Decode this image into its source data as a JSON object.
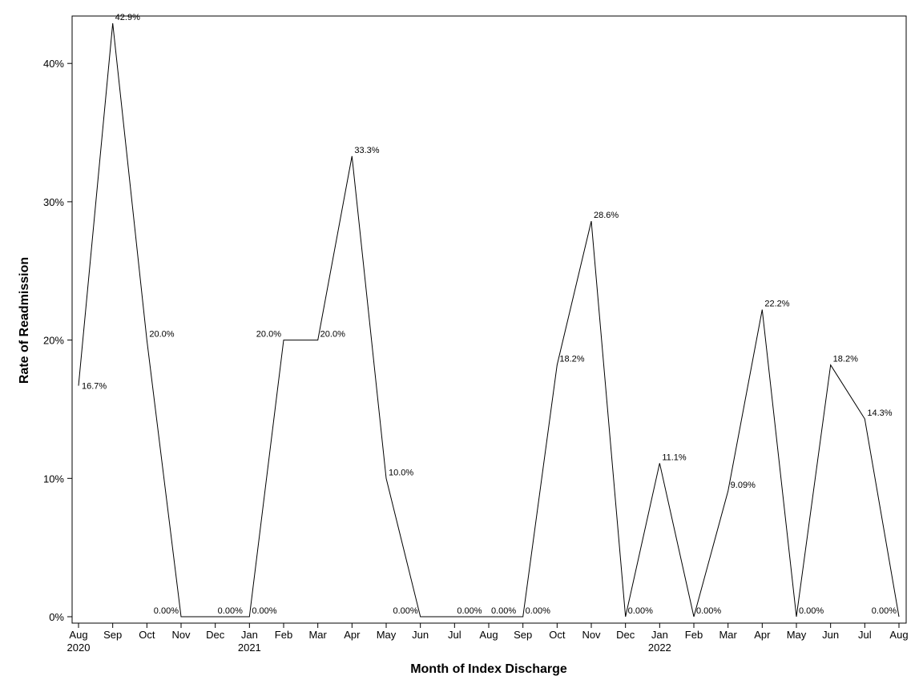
{
  "chart_data": {
    "type": "line",
    "xlabel": "Month of Index Discharge",
    "ylabel": "Rate of Readmission",
    "ylim": [
      0,
      43
    ],
    "yticks": [
      0,
      10,
      20,
      30,
      40
    ],
    "ytick_labels": [
      "0%",
      "10%",
      "20%",
      "30%",
      "40%"
    ],
    "grid": false,
    "legend": "none",
    "line_color": "#000000",
    "x": [
      "2020-08",
      "2020-09",
      "2020-10",
      "2020-11",
      "2020-12",
      "2021-01",
      "2021-02",
      "2021-03",
      "2021-04",
      "2021-05",
      "2021-06",
      "2021-07",
      "2021-08",
      "2021-09",
      "2021-10",
      "2021-11",
      "2021-12",
      "2022-01",
      "2022-02",
      "2022-03",
      "2022-04",
      "2022-05",
      "2022-06",
      "2022-07",
      "2022-08"
    ],
    "xtick_labels": [
      "Aug",
      "Sep",
      "Oct",
      "Nov",
      "Dec",
      "Jan",
      "Feb",
      "Mar",
      "Apr",
      "May",
      "Jun",
      "Jul",
      "Aug",
      "Sep",
      "Oct",
      "Nov",
      "Dec",
      "Jan",
      "Feb",
      "Mar",
      "Apr",
      "May",
      "Jun",
      "Jul",
      "Aug"
    ],
    "xtick_year_labels": {
      "0": "2020",
      "5": "2021",
      "17": "2022"
    },
    "series": [
      {
        "values": [
          16.7,
          42.9,
          20.0,
          0.0,
          0.0,
          0.0,
          20.0,
          20.0,
          33.3,
          10.0,
          0.0,
          0.0,
          0.0,
          0.0,
          18.2,
          28.6,
          0.0,
          11.1,
          0.0,
          9.09,
          22.2,
          0.0,
          18.2,
          14.3,
          0.0
        ],
        "labels": [
          "16.7%",
          "42.9%",
          "20.0%",
          "0.00%",
          "0.00%",
          "0.00%",
          "20.0%",
          "20.0%",
          "33.3%",
          "10.0%",
          "0.00%",
          "0.00%",
          "0.00%",
          "0.00%",
          "18.2%",
          "28.6%",
          "0.00%",
          "11.1%",
          "0.00%",
          "9.09%",
          "22.2%",
          "0.00%",
          "18.2%",
          "14.3%",
          "0.00%"
        ]
      }
    ]
  }
}
